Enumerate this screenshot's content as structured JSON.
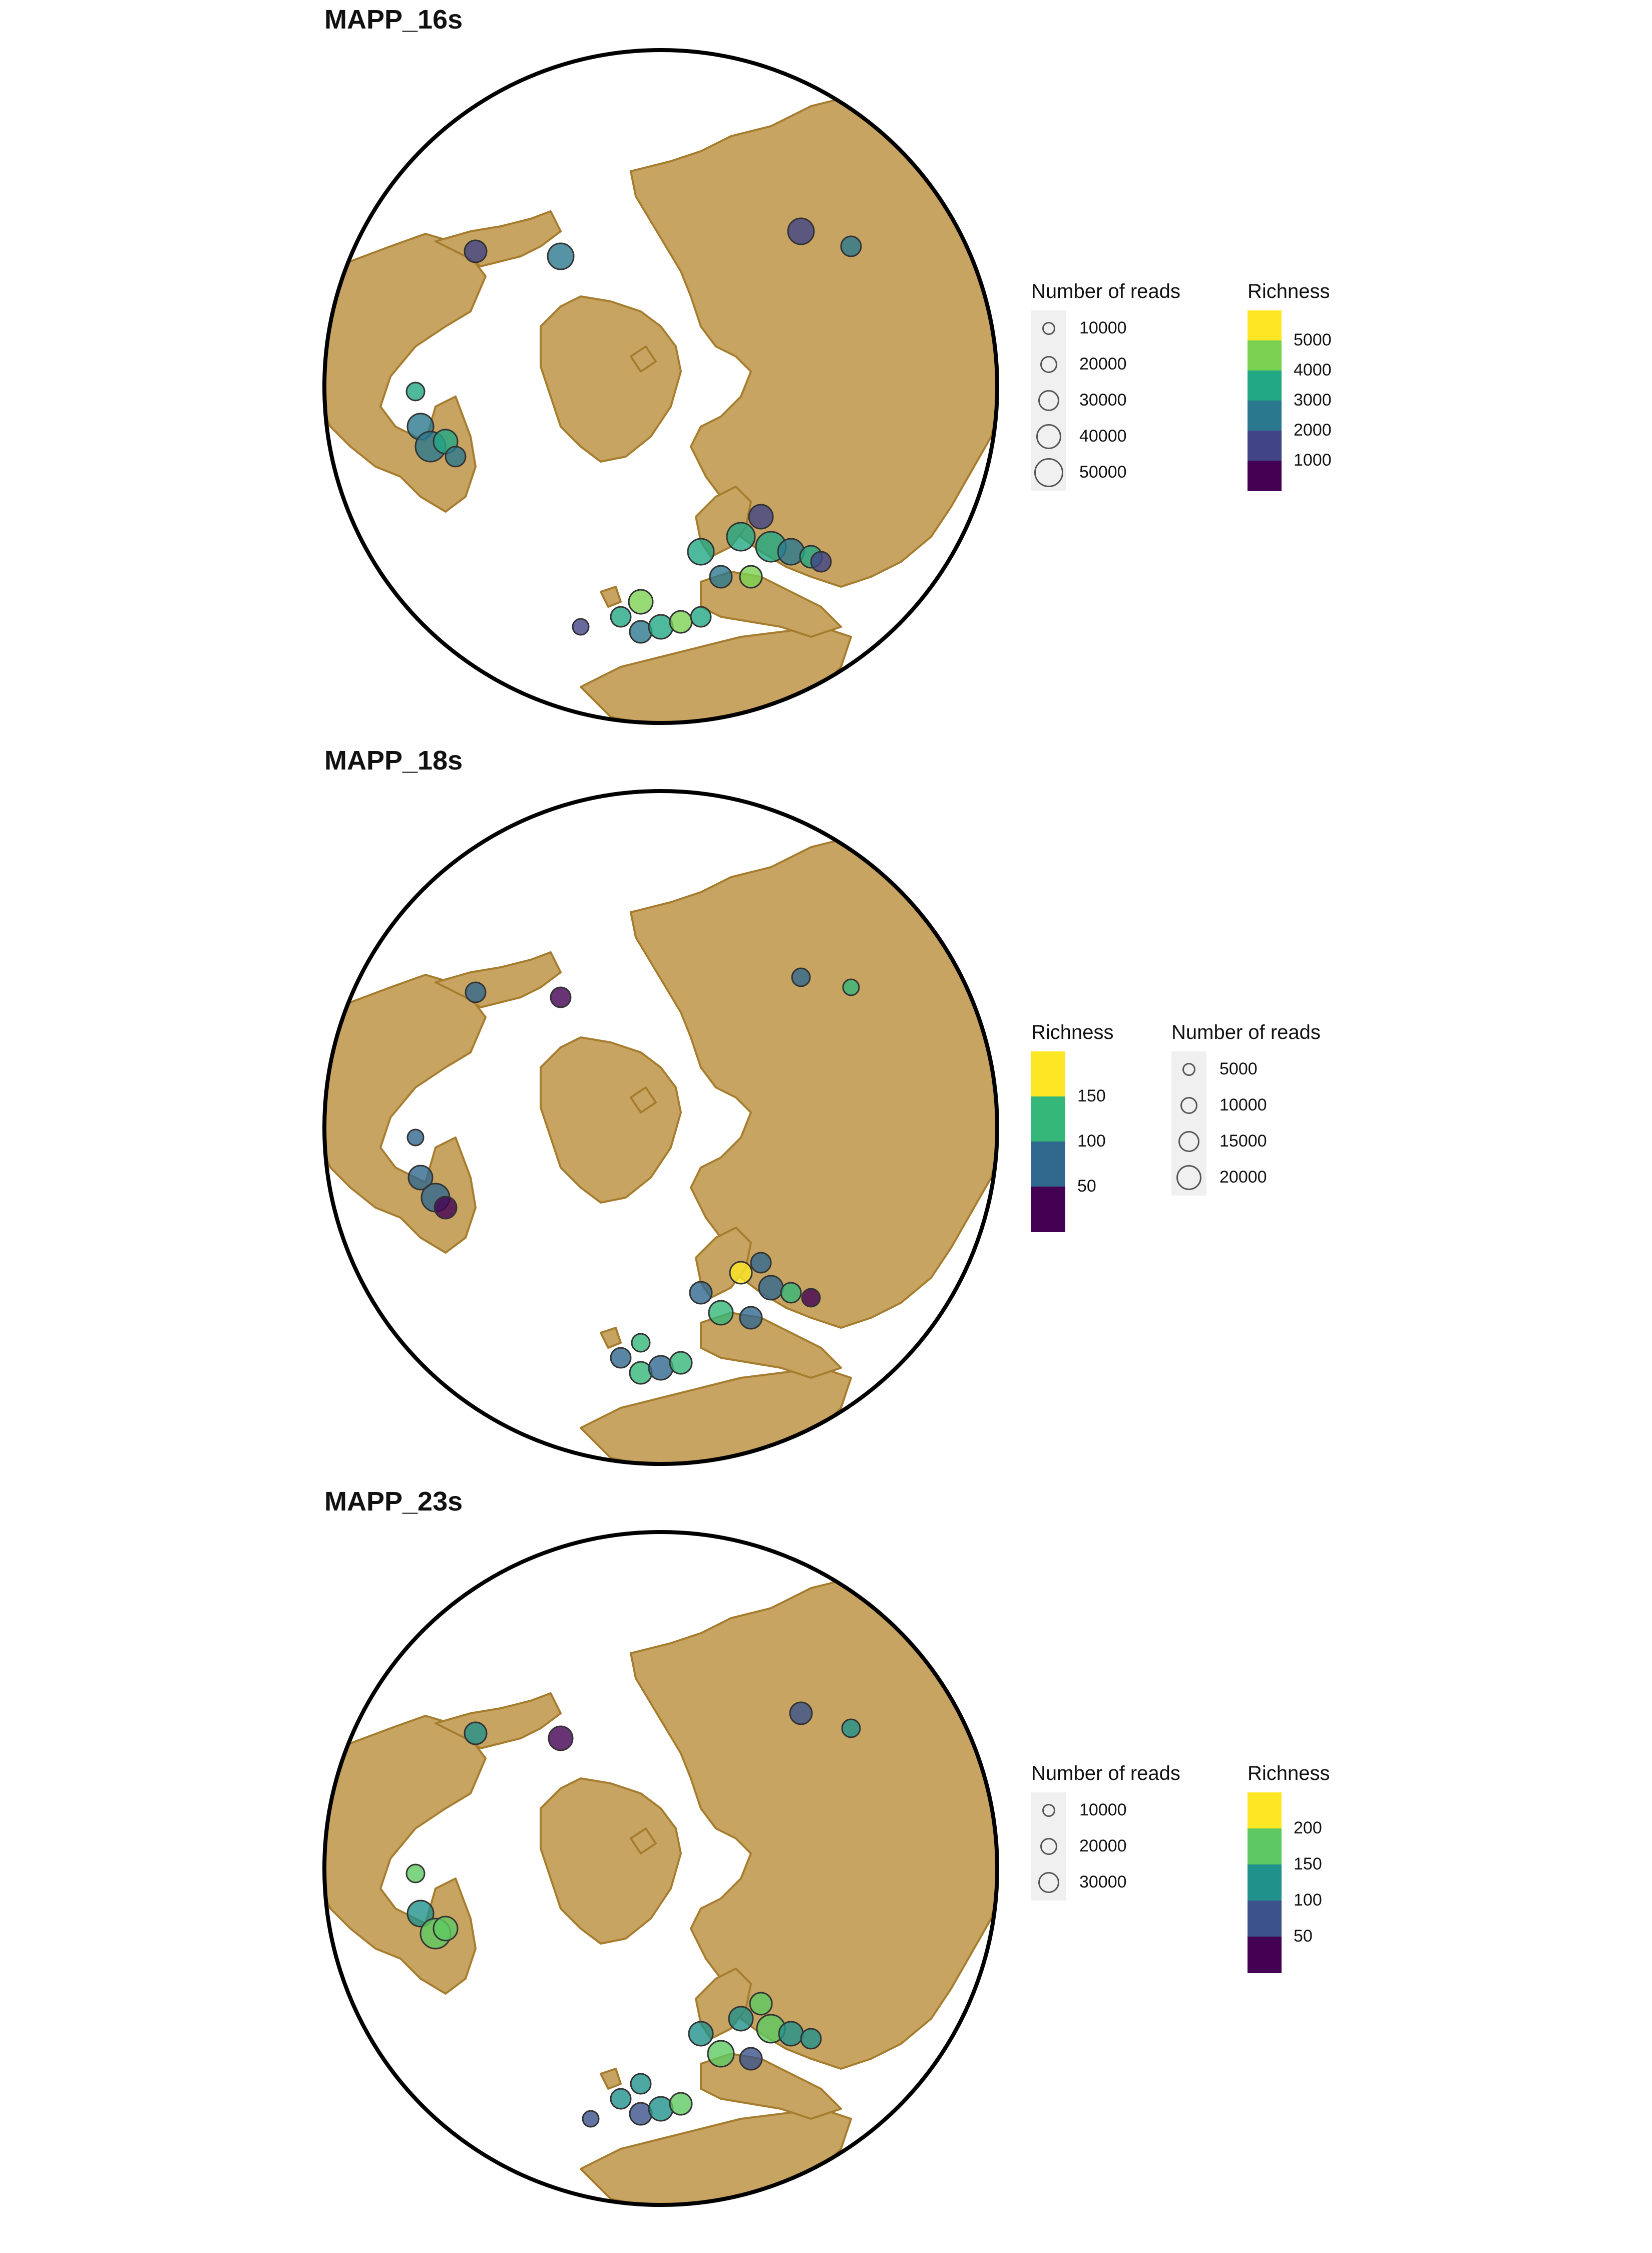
{
  "panels": [
    {
      "title": "MAPP_16s",
      "size_legend": {
        "title": "Number of reads",
        "entries": [
          "10000",
          "20000",
          "30000",
          "40000",
          "50000"
        ]
      },
      "color_legend": {
        "title": "Richness",
        "labels": [
          "5000",
          "4000",
          "3000",
          "2000",
          "1000"
        ],
        "colors": [
          "#fde725",
          "#7ad151",
          "#22a884",
          "#2a788e",
          "#414487",
          "#440154"
        ]
      },
      "legend_order": "size-first"
    },
    {
      "title": "MAPP_18s",
      "size_legend": {
        "title": "Number of reads",
        "entries": [
          "5000",
          "10000",
          "15000",
          "20000"
        ]
      },
      "color_legend": {
        "title": "Richness",
        "labels": [
          "150",
          "100",
          "50"
        ],
        "colors": [
          "#fde725",
          "#35b779",
          "#31688e",
          "#440154"
        ]
      },
      "legend_order": "color-first"
    },
    {
      "title": "MAPP_23s",
      "size_legend": {
        "title": "Number of reads",
        "entries": [
          "10000",
          "20000",
          "30000"
        ]
      },
      "color_legend": {
        "title": "Richness",
        "labels": [
          "200",
          "150",
          "100",
          "50"
        ],
        "colors": [
          "#fde725",
          "#5ec962",
          "#21918c",
          "#3b528b",
          "#440154"
        ]
      },
      "legend_order": "size-first"
    }
  ],
  "map_colors": {
    "land": "#c8a462",
    "border": "#a67c2e",
    "ocean": "#ffffff",
    "globe_edge": "#000000"
  }
}
